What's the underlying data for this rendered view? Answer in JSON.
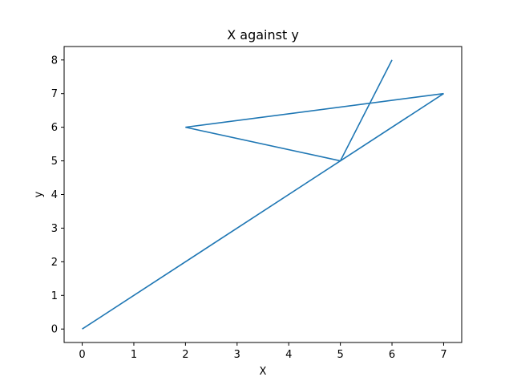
{
  "chart_data": {
    "type": "line",
    "title": "X against y",
    "xlabel": "X",
    "ylabel": "y",
    "x": [
      0,
      5,
      7,
      2,
      5,
      6
    ],
    "series": [
      {
        "values": [
          0,
          5,
          7,
          6,
          5,
          8
        ],
        "color": "#1f77b4"
      }
    ],
    "xlim": [
      -0.35,
      7.35
    ],
    "ylim": [
      -0.4,
      8.4
    ],
    "xticks": [
      0,
      1,
      2,
      3,
      4,
      5,
      6,
      7
    ],
    "yticks": [
      0,
      1,
      2,
      3,
      4,
      5,
      6,
      7,
      8
    ],
    "grid": false,
    "legend": "none"
  }
}
